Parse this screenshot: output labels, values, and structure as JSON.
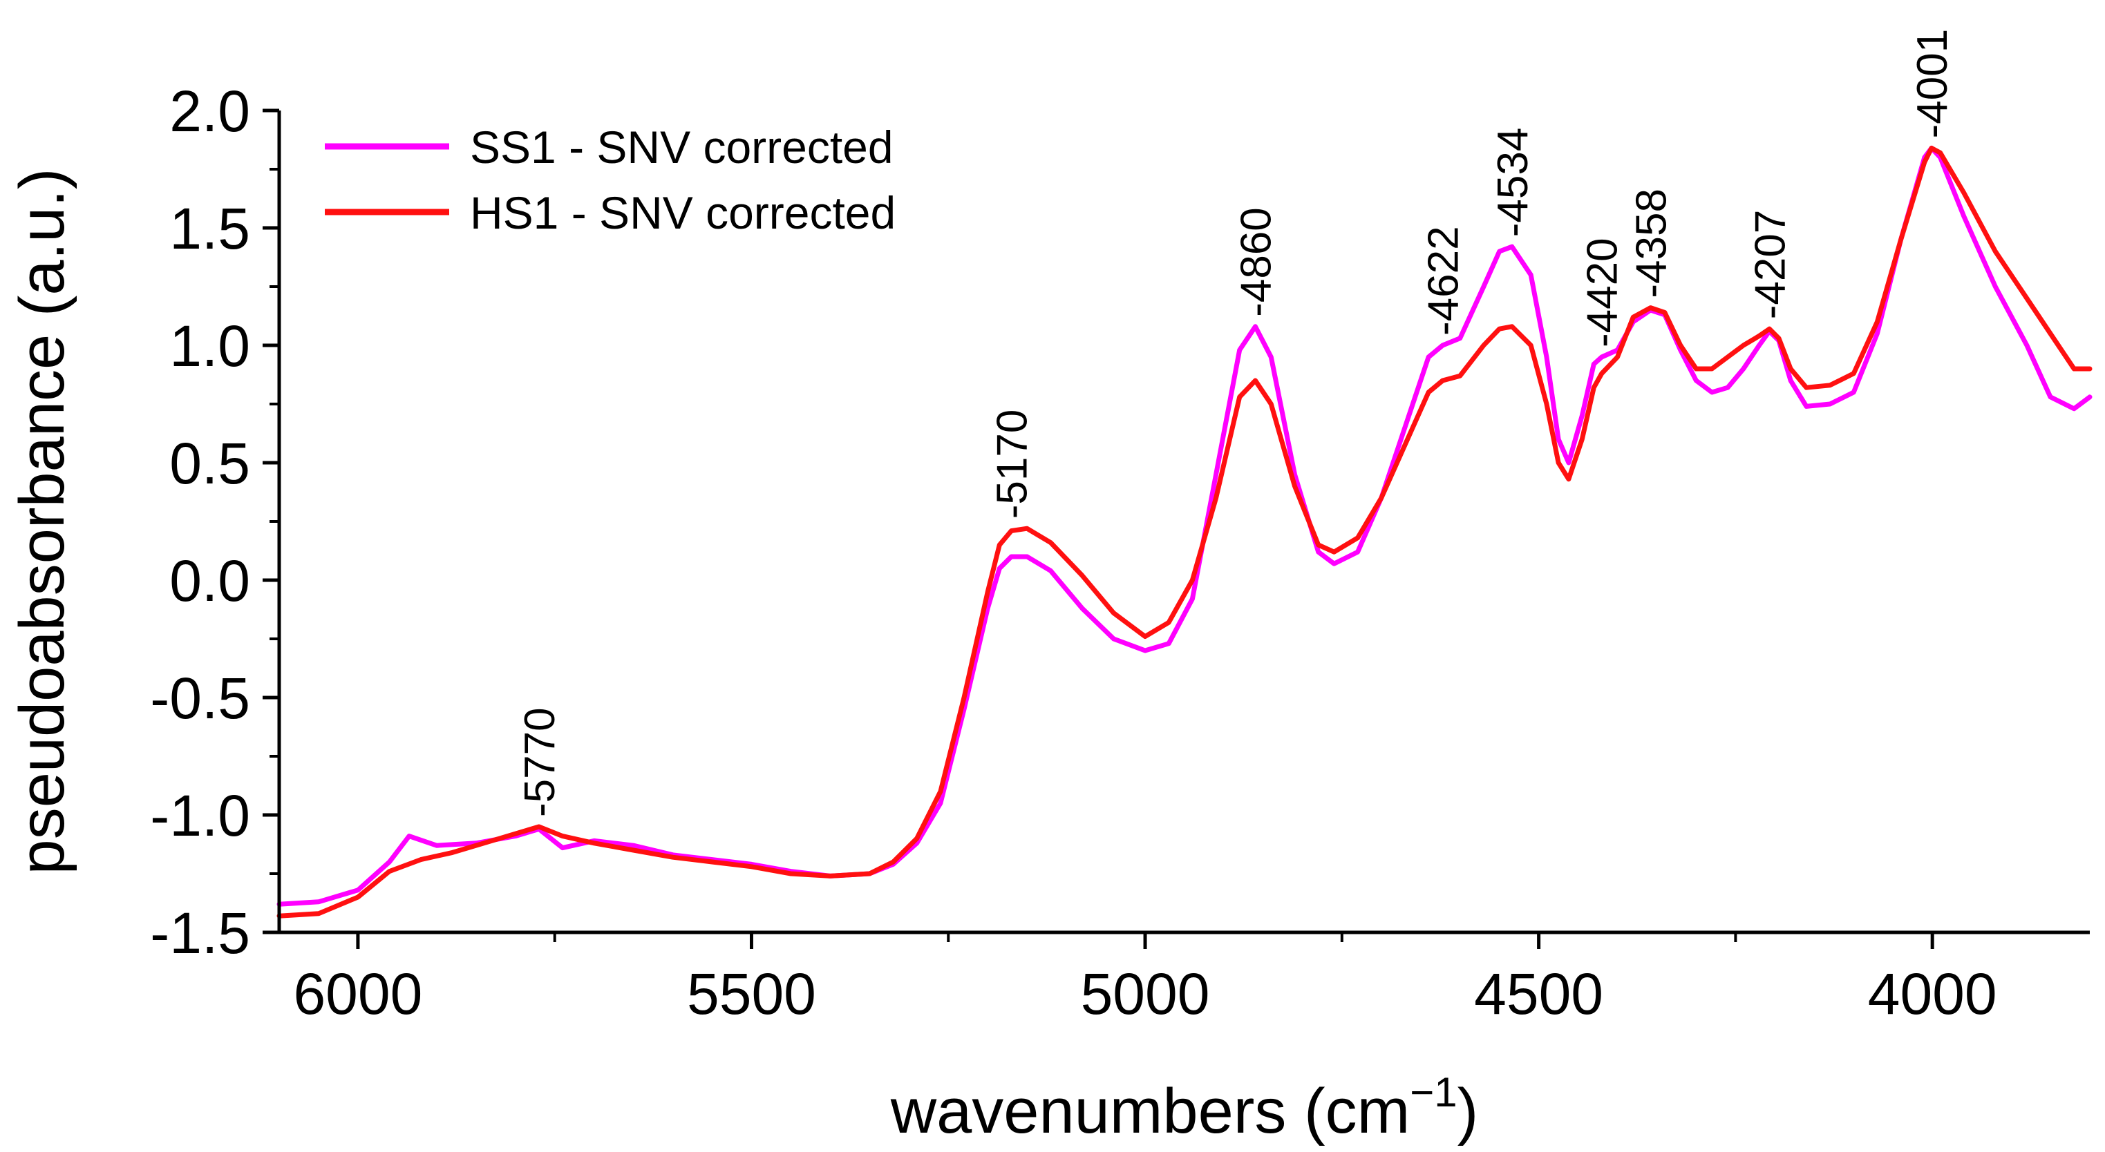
{
  "chart_data": {
    "type": "line",
    "title": "",
    "xlabel": "wavenumbers (cm",
    "xlabel_sup": "−1",
    "xlabel_close": ")",
    "ylabel": "pseudoabsorbance (a.u.)",
    "xlim": [
      6100,
      3800
    ],
    "ylim": [
      -1.5,
      2.0
    ],
    "x_reversed": true,
    "x_ticks": [
      6000,
      5500,
      5000,
      4500,
      4000
    ],
    "x_tick_labels": [
      "6000",
      "5500",
      "5000",
      "4500",
      "4000"
    ],
    "x_minor_ticks": [
      5750,
      5250,
      4750,
      4250
    ],
    "y_ticks": [
      -1.5,
      -1.0,
      -0.5,
      0.0,
      0.5,
      1.0,
      1.5,
      2.0
    ],
    "y_tick_labels": [
      "-1.5",
      "-1.0",
      "-0.5",
      "0.0",
      "0.5",
      "1.0",
      "1.5",
      "2.0"
    ],
    "grid": false,
    "legend_position": "top-left",
    "series": [
      {
        "name": "SS1 - SNV corrected",
        "color": "#ff00ff",
        "points": [
          [
            6100,
            -1.38
          ],
          [
            6050,
            -1.37
          ],
          [
            6000,
            -1.32
          ],
          [
            5960,
            -1.2
          ],
          [
            5935,
            -1.09
          ],
          [
            5900,
            -1.13
          ],
          [
            5850,
            -1.12
          ],
          [
            5800,
            -1.09
          ],
          [
            5770,
            -1.06
          ],
          [
            5740,
            -1.14
          ],
          [
            5700,
            -1.11
          ],
          [
            5650,
            -1.13
          ],
          [
            5600,
            -1.17
          ],
          [
            5550,
            -1.19
          ],
          [
            5500,
            -1.21
          ],
          [
            5450,
            -1.24
          ],
          [
            5400,
            -1.26
          ],
          [
            5350,
            -1.25
          ],
          [
            5320,
            -1.21
          ],
          [
            5290,
            -1.12
          ],
          [
            5260,
            -0.95
          ],
          [
            5230,
            -0.55
          ],
          [
            5200,
            -0.12
          ],
          [
            5185,
            0.05
          ],
          [
            5170,
            0.1
          ],
          [
            5150,
            0.1
          ],
          [
            5120,
            0.04
          ],
          [
            5080,
            -0.12
          ],
          [
            5040,
            -0.25
          ],
          [
            5000,
            -0.3
          ],
          [
            4970,
            -0.27
          ],
          [
            4940,
            -0.08
          ],
          [
            4910,
            0.45
          ],
          [
            4880,
            0.98
          ],
          [
            4860,
            1.08
          ],
          [
            4840,
            0.95
          ],
          [
            4810,
            0.45
          ],
          [
            4780,
            0.12
          ],
          [
            4760,
            0.07
          ],
          [
            4730,
            0.12
          ],
          [
            4700,
            0.35
          ],
          [
            4660,
            0.75
          ],
          [
            4640,
            0.95
          ],
          [
            4622,
            1.0
          ],
          [
            4600,
            1.03
          ],
          [
            4570,
            1.25
          ],
          [
            4550,
            1.4
          ],
          [
            4534,
            1.42
          ],
          [
            4510,
            1.3
          ],
          [
            4490,
            0.95
          ],
          [
            4475,
            0.6
          ],
          [
            4462,
            0.5
          ],
          [
            4445,
            0.7
          ],
          [
            4430,
            0.92
          ],
          [
            4420,
            0.95
          ],
          [
            4400,
            0.98
          ],
          [
            4380,
            1.1
          ],
          [
            4358,
            1.15
          ],
          [
            4340,
            1.13
          ],
          [
            4320,
            0.98
          ],
          [
            4300,
            0.85
          ],
          [
            4280,
            0.8
          ],
          [
            4260,
            0.82
          ],
          [
            4240,
            0.9
          ],
          [
            4220,
            1.0
          ],
          [
            4207,
            1.06
          ],
          [
            4195,
            1.02
          ],
          [
            4180,
            0.85
          ],
          [
            4160,
            0.74
          ],
          [
            4130,
            0.75
          ],
          [
            4100,
            0.8
          ],
          [
            4070,
            1.05
          ],
          [
            4040,
            1.45
          ],
          [
            4010,
            1.8
          ],
          [
            4001,
            1.84
          ],
          [
            3990,
            1.8
          ],
          [
            3960,
            1.55
          ],
          [
            3920,
            1.25
          ],
          [
            3880,
            1.0
          ],
          [
            3850,
            0.78
          ],
          [
            3820,
            0.73
          ],
          [
            3800,
            0.78
          ]
        ]
      },
      {
        "name": "HS1 - SNV corrected",
        "color": "#ff1010",
        "points": [
          [
            6100,
            -1.43
          ],
          [
            6050,
            -1.42
          ],
          [
            6000,
            -1.35
          ],
          [
            5960,
            -1.24
          ],
          [
            5920,
            -1.19
          ],
          [
            5880,
            -1.16
          ],
          [
            5840,
            -1.12
          ],
          [
            5800,
            -1.08
          ],
          [
            5770,
            -1.05
          ],
          [
            5740,
            -1.09
          ],
          [
            5700,
            -1.12
          ],
          [
            5650,
            -1.15
          ],
          [
            5600,
            -1.18
          ],
          [
            5550,
            -1.2
          ],
          [
            5500,
            -1.22
          ],
          [
            5450,
            -1.25
          ],
          [
            5400,
            -1.26
          ],
          [
            5350,
            -1.25
          ],
          [
            5320,
            -1.2
          ],
          [
            5290,
            -1.1
          ],
          [
            5260,
            -0.9
          ],
          [
            5230,
            -0.5
          ],
          [
            5200,
            -0.05
          ],
          [
            5185,
            0.15
          ],
          [
            5170,
            0.21
          ],
          [
            5150,
            0.22
          ],
          [
            5120,
            0.16
          ],
          [
            5080,
            0.02
          ],
          [
            5040,
            -0.14
          ],
          [
            5000,
            -0.24
          ],
          [
            4970,
            -0.18
          ],
          [
            4940,
            0.0
          ],
          [
            4910,
            0.35
          ],
          [
            4880,
            0.78
          ],
          [
            4860,
            0.85
          ],
          [
            4840,
            0.75
          ],
          [
            4810,
            0.4
          ],
          [
            4780,
            0.15
          ],
          [
            4760,
            0.12
          ],
          [
            4730,
            0.18
          ],
          [
            4700,
            0.35
          ],
          [
            4660,
            0.65
          ],
          [
            4640,
            0.8
          ],
          [
            4622,
            0.85
          ],
          [
            4600,
            0.87
          ],
          [
            4570,
            1.0
          ],
          [
            4550,
            1.07
          ],
          [
            4534,
            1.08
          ],
          [
            4510,
            1.0
          ],
          [
            4490,
            0.75
          ],
          [
            4475,
            0.5
          ],
          [
            4462,
            0.43
          ],
          [
            4445,
            0.6
          ],
          [
            4430,
            0.82
          ],
          [
            4420,
            0.88
          ],
          [
            4400,
            0.95
          ],
          [
            4380,
            1.12
          ],
          [
            4358,
            1.16
          ],
          [
            4340,
            1.14
          ],
          [
            4320,
            1.0
          ],
          [
            4300,
            0.9
          ],
          [
            4280,
            0.9
          ],
          [
            4260,
            0.95
          ],
          [
            4240,
            1.0
          ],
          [
            4220,
            1.04
          ],
          [
            4207,
            1.07
          ],
          [
            4195,
            1.03
          ],
          [
            4180,
            0.9
          ],
          [
            4160,
            0.82
          ],
          [
            4130,
            0.83
          ],
          [
            4100,
            0.88
          ],
          [
            4070,
            1.1
          ],
          [
            4040,
            1.45
          ],
          [
            4010,
            1.78
          ],
          [
            4001,
            1.84
          ],
          [
            3990,
            1.82
          ],
          [
            3960,
            1.65
          ],
          [
            3920,
            1.4
          ],
          [
            3880,
            1.2
          ],
          [
            3850,
            1.05
          ],
          [
            3820,
            0.9
          ],
          [
            3800,
            0.9
          ]
        ]
      }
    ],
    "annotations": [
      {
        "label": "5770",
        "x": 5770,
        "y": -1.05
      },
      {
        "label": "5170",
        "x": 5170,
        "y": 0.22
      },
      {
        "label": "4860",
        "x": 4860,
        "y": 1.08
      },
      {
        "label": "4622",
        "x": 4622,
        "y": 1.0
      },
      {
        "label": "4534",
        "x": 4534,
        "y": 1.42
      },
      {
        "label": "4420",
        "x": 4420,
        "y": 0.95
      },
      {
        "label": "4358",
        "x": 4358,
        "y": 1.16
      },
      {
        "label": "4207",
        "x": 4207,
        "y": 1.07
      },
      {
        "label": "4001",
        "x": 4001,
        "y": 1.84
      }
    ]
  }
}
